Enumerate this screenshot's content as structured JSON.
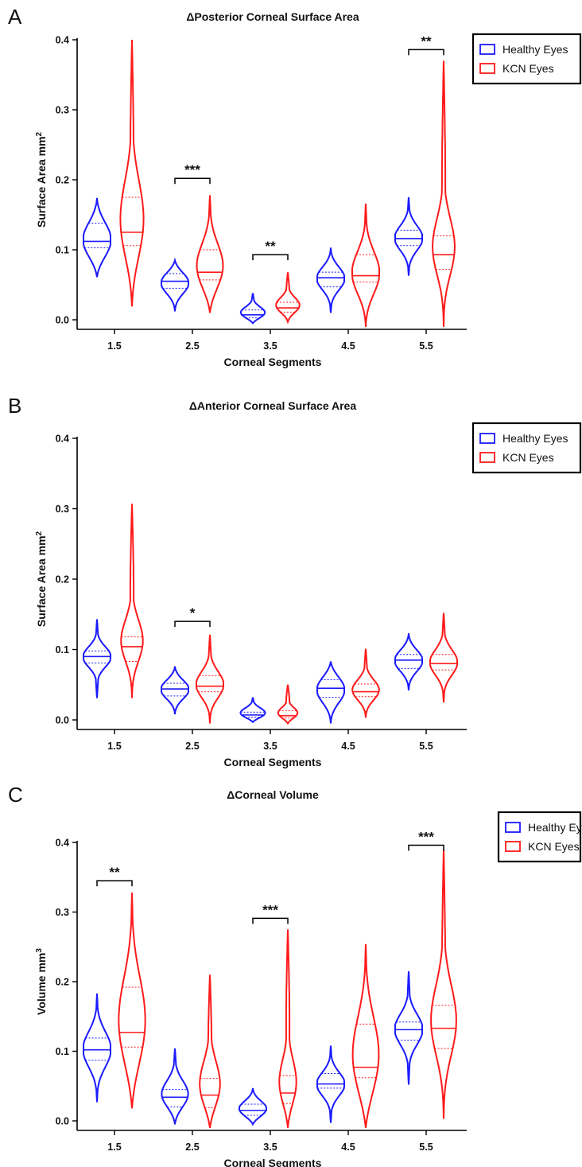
{
  "colors": {
    "healthy": "#1a1aff",
    "kcn": "#ff1a1a",
    "axis": "#000000"
  },
  "chart_data": [
    {
      "type": "violin",
      "panel_label": "A",
      "title": "ΔPosterior Corneal Surface Area",
      "xlabel": "Corneal Segments",
      "ylabel": "Surface Area mm",
      "ylabel_sup": "2",
      "ylim": [
        0,
        0.4
      ],
      "yticks": [
        "0.0",
        "0.1",
        "0.2",
        "0.3",
        "0.4"
      ],
      "categories": [
        "1.5",
        "2.5",
        "3.5",
        "4.5",
        "5.5"
      ],
      "legend_position": "top-right",
      "series": [
        {
          "name": "Healthy Eyes",
          "color": "#1a1aff",
          "violins": [
            {
              "min": 0.061,
              "max": 0.174,
              "median": 0.112,
              "q1": 0.103,
              "q3": 0.138
            },
            {
              "min": 0.012,
              "max": 0.085,
              "median": 0.055,
              "q1": 0.045,
              "q3": 0.066
            },
            {
              "min": -0.005,
              "max": 0.038,
              "median": 0.007,
              "q1": 0.003,
              "q3": 0.014
            },
            {
              "min": 0.01,
              "max": 0.103,
              "median": 0.06,
              "q1": 0.047,
              "q3": 0.068
            },
            {
              "min": 0.063,
              "max": 0.175,
              "median": 0.116,
              "q1": 0.106,
              "q3": 0.128
            }
          ]
        },
        {
          "name": "KCN Eyes",
          "color": "#ff1a1a",
          "violins": [
            {
              "min": 0.019,
              "max": 0.4,
              "median": 0.125,
              "q1": 0.106,
              "q3": 0.175
            },
            {
              "min": 0.01,
              "max": 0.178,
              "median": 0.068,
              "q1": 0.057,
              "q3": 0.1
            },
            {
              "min": -0.003,
              "max": 0.068,
              "median": 0.017,
              "q1": 0.011,
              "q3": 0.025
            },
            {
              "min": -0.01,
              "max": 0.166,
              "median": 0.063,
              "q1": 0.054,
              "q3": 0.093
            },
            {
              "min": -0.01,
              "max": 0.37,
              "median": 0.093,
              "q1": 0.072,
              "q3": 0.12
            }
          ]
        }
      ],
      "significance": [
        {
          "category": "2.5",
          "label": "***",
          "y": 0.202
        },
        {
          "category": "3.5",
          "label": "**",
          "y": 0.093
        },
        {
          "category": "5.5",
          "label": "**",
          "y": 0.386
        }
      ]
    },
    {
      "type": "violin",
      "panel_label": "B",
      "title": "ΔAnterior Corneal Surface Area",
      "xlabel": "Corneal Segments",
      "ylabel": "Surface Area mm",
      "ylabel_sup": "2",
      "ylim": [
        0,
        0.4
      ],
      "yticks": [
        "0.0",
        "0.1",
        "0.2",
        "0.3",
        "0.4"
      ],
      "categories": [
        "1.5",
        "2.5",
        "3.5",
        "4.5",
        "5.5"
      ],
      "legend_position": "top-right",
      "series": [
        {
          "name": "Healthy Eyes",
          "color": "#1a1aff",
          "violins": [
            {
              "min": 0.031,
              "max": 0.143,
              "median": 0.09,
              "q1": 0.081,
              "q3": 0.098
            },
            {
              "min": 0.008,
              "max": 0.076,
              "median": 0.044,
              "q1": 0.034,
              "q3": 0.052
            },
            {
              "min": -0.003,
              "max": 0.032,
              "median": 0.007,
              "q1": 0.004,
              "q3": 0.011
            },
            {
              "min": -0.005,
              "max": 0.083,
              "median": 0.045,
              "q1": 0.032,
              "q3": 0.057
            },
            {
              "min": 0.042,
              "max": 0.123,
              "median": 0.085,
              "q1": 0.073,
              "q3": 0.093
            }
          ]
        },
        {
          "name": "KCN Eyes",
          "color": "#ff1a1a",
          "violins": [
            {
              "min": 0.031,
              "max": 0.307,
              "median": 0.104,
              "q1": 0.083,
              "q3": 0.118
            },
            {
              "min": -0.005,
              "max": 0.121,
              "median": 0.048,
              "q1": 0.04,
              "q3": 0.063
            },
            {
              "min": -0.005,
              "max": 0.05,
              "median": 0.006,
              "q1": 0.003,
              "q3": 0.013
            },
            {
              "min": 0.003,
              "max": 0.101,
              "median": 0.04,
              "q1": 0.033,
              "q3": 0.051
            },
            {
              "min": 0.025,
              "max": 0.152,
              "median": 0.08,
              "q1": 0.071,
              "q3": 0.093
            }
          ]
        }
      ],
      "significance": [
        {
          "category": "2.5",
          "label": "*",
          "y": 0.14
        }
      ]
    },
    {
      "type": "violin",
      "panel_label": "C",
      "title": "ΔCorneal Volume",
      "xlabel": "Corneal Segments",
      "ylabel": "Volume mm",
      "ylabel_sup": "3",
      "ylim": [
        0,
        0.4
      ],
      "yticks": [
        "0.0",
        "0.1",
        "0.2",
        "0.3",
        "0.4"
      ],
      "categories": [
        "1.5",
        "2.5",
        "3.5",
        "4.5",
        "5.5"
      ],
      "legend_position": "top-right",
      "series": [
        {
          "name": "Healthy Eyes",
          "color": "#1a1aff",
          "violins": [
            {
              "min": 0.027,
              "max": 0.183,
              "median": 0.102,
              "q1": 0.087,
              "q3": 0.119
            },
            {
              "min": -0.005,
              "max": 0.104,
              "median": 0.034,
              "q1": 0.02,
              "q3": 0.045
            },
            {
              "min": -0.005,
              "max": 0.047,
              "median": 0.015,
              "q1": 0.008,
              "q3": 0.024
            },
            {
              "min": -0.003,
              "max": 0.108,
              "median": 0.053,
              "q1": 0.047,
              "q3": 0.068
            },
            {
              "min": 0.052,
              "max": 0.215,
              "median": 0.131,
              "q1": 0.116,
              "q3": 0.142
            }
          ]
        },
        {
          "name": "KCN Eyes",
          "color": "#ff1a1a",
          "violins": [
            {
              "min": 0.018,
              "max": 0.328,
              "median": 0.127,
              "q1": 0.106,
              "q3": 0.192
            },
            {
              "min": -0.01,
              "max": 0.21,
              "median": 0.037,
              "q1": 0.019,
              "q3": 0.061
            },
            {
              "min": -0.01,
              "max": 0.275,
              "median": 0.04,
              "q1": 0.025,
              "q3": 0.065
            },
            {
              "min": -0.01,
              "max": 0.254,
              "median": 0.077,
              "q1": 0.062,
              "q3": 0.139
            },
            {
              "min": 0.003,
              "max": 0.39,
              "median": 0.133,
              "q1": 0.104,
              "q3": 0.166
            }
          ]
        }
      ],
      "significance": [
        {
          "category": "1.5",
          "label": "**",
          "y": 0.345
        },
        {
          "category": "3.5",
          "label": "***",
          "y": 0.291
        },
        {
          "category": "5.5",
          "label": "***",
          "y": 0.396
        }
      ]
    }
  ]
}
